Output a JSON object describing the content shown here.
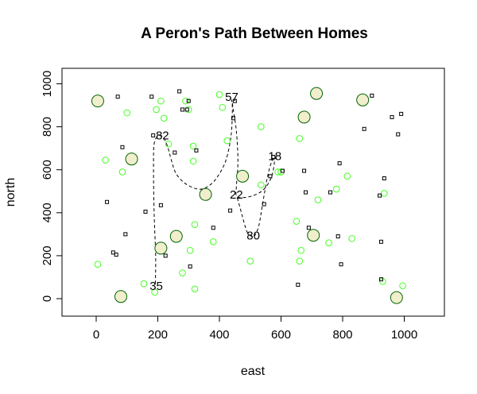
{
  "chart_data": {
    "type": "scatter",
    "title": "A Peron's Path Between Homes",
    "xlabel": "east",
    "ylabel": "north",
    "xlim": [
      -100,
      1100
    ],
    "ylim": [
      -80,
      1080
    ],
    "xticks": [
      "0",
      "200",
      "400",
      "600",
      "800",
      "1000"
    ],
    "yticks": [
      "0",
      "200",
      "400",
      "600",
      "800",
      "1000"
    ],
    "grid": false,
    "legend": "none",
    "colors": {
      "large_fill": "#f1eecd",
      "large_stroke": "#006400",
      "small_stroke": "#44ff22",
      "square_stroke": "#000000",
      "path": "#000000"
    },
    "homes": [
      {
        "x": 5,
        "y": 920
      },
      {
        "x": 115,
        "y": 650
      },
      {
        "x": 80,
        "y": 10
      },
      {
        "x": 210,
        "y": 235
      },
      {
        "x": 260,
        "y": 290
      },
      {
        "x": 355,
        "y": 485
      },
      {
        "x": 475,
        "y": 570
      },
      {
        "x": 675,
        "y": 845
      },
      {
        "x": 715,
        "y": 955
      },
      {
        "x": 705,
        "y": 295
      },
      {
        "x": 865,
        "y": 925
      },
      {
        "x": 975,
        "y": 5
      }
    ],
    "green_points": [
      {
        "x": 5,
        "y": 160
      },
      {
        "x": 30,
        "y": 645
      },
      {
        "x": 85,
        "y": 590
      },
      {
        "x": 100,
        "y": 865
      },
      {
        "x": 155,
        "y": 70
      },
      {
        "x": 190,
        "y": 30
      },
      {
        "x": 195,
        "y": 880
      },
      {
        "x": 210,
        "y": 920
      },
      {
        "x": 220,
        "y": 840
      },
      {
        "x": 235,
        "y": 720
      },
      {
        "x": 280,
        "y": 120
      },
      {
        "x": 290,
        "y": 920
      },
      {
        "x": 300,
        "y": 880
      },
      {
        "x": 305,
        "y": 225
      },
      {
        "x": 315,
        "y": 640
      },
      {
        "x": 315,
        "y": 710
      },
      {
        "x": 320,
        "y": 45
      },
      {
        "x": 320,
        "y": 345
      },
      {
        "x": 380,
        "y": 265
      },
      {
        "x": 400,
        "y": 950
      },
      {
        "x": 410,
        "y": 890
      },
      {
        "x": 425,
        "y": 735
      },
      {
        "x": 500,
        "y": 175
      },
      {
        "x": 535,
        "y": 530
      },
      {
        "x": 535,
        "y": 800
      },
      {
        "x": 590,
        "y": 590
      },
      {
        "x": 600,
        "y": 590
      },
      {
        "x": 650,
        "y": 360
      },
      {
        "x": 660,
        "y": 745
      },
      {
        "x": 660,
        "y": 175
      },
      {
        "x": 665,
        "y": 225
      },
      {
        "x": 720,
        "y": 460
      },
      {
        "x": 755,
        "y": 260
      },
      {
        "x": 780,
        "y": 510
      },
      {
        "x": 815,
        "y": 570
      },
      {
        "x": 830,
        "y": 280
      },
      {
        "x": 930,
        "y": 80
      },
      {
        "x": 935,
        "y": 490
      },
      {
        "x": 995,
        "y": 60
      }
    ],
    "squares": [
      {
        "x": 35,
        "y": 450
      },
      {
        "x": 55,
        "y": 215
      },
      {
        "x": 65,
        "y": 205
      },
      {
        "x": 70,
        "y": 940
      },
      {
        "x": 85,
        "y": 705
      },
      {
        "x": 95,
        "y": 300
      },
      {
        "x": 160,
        "y": 405
      },
      {
        "x": 180,
        "y": 940
      },
      {
        "x": 185,
        "y": 760
      },
      {
        "x": 210,
        "y": 435
      },
      {
        "x": 225,
        "y": 200
      },
      {
        "x": 255,
        "y": 680
      },
      {
        "x": 270,
        "y": 965
      },
      {
        "x": 280,
        "y": 880
      },
      {
        "x": 295,
        "y": 880
      },
      {
        "x": 300,
        "y": 920
      },
      {
        "x": 305,
        "y": 150
      },
      {
        "x": 325,
        "y": 690
      },
      {
        "x": 380,
        "y": 330
      },
      {
        "x": 435,
        "y": 410
      },
      {
        "x": 445,
        "y": 840
      },
      {
        "x": 450,
        "y": 920
      },
      {
        "x": 545,
        "y": 440
      },
      {
        "x": 565,
        "y": 570
      },
      {
        "x": 575,
        "y": 660
      },
      {
        "x": 605,
        "y": 595
      },
      {
        "x": 655,
        "y": 65
      },
      {
        "x": 675,
        "y": 595
      },
      {
        "x": 680,
        "y": 495
      },
      {
        "x": 690,
        "y": 330
      },
      {
        "x": 760,
        "y": 495
      },
      {
        "x": 785,
        "y": 290
      },
      {
        "x": 790,
        "y": 630
      },
      {
        "x": 795,
        "y": 160
      },
      {
        "x": 870,
        "y": 790
      },
      {
        "x": 895,
        "y": 945
      },
      {
        "x": 920,
        "y": 480
      },
      {
        "x": 925,
        "y": 90
      },
      {
        "x": 925,
        "y": 265
      },
      {
        "x": 935,
        "y": 560
      },
      {
        "x": 960,
        "y": 845
      },
      {
        "x": 980,
        "y": 765
      },
      {
        "x": 990,
        "y": 860
      }
    ],
    "path_labels": [
      {
        "label": "35",
        "x": 195,
        "y": 55
      },
      {
        "label": "82",
        "x": 215,
        "y": 755
      },
      {
        "label": "57",
        "x": 440,
        "y": 935
      },
      {
        "label": "22",
        "x": 455,
        "y": 480
      },
      {
        "label": "80",
        "x": 510,
        "y": 290
      },
      {
        "label": "18",
        "x": 580,
        "y": 660
      }
    ],
    "path": [
      [
        192,
        70
      ],
      [
        193,
        200
      ],
      [
        188,
        400
      ],
      [
        186,
        600
      ],
      [
        188,
        720
      ],
      [
        200,
        755
      ],
      [
        215,
        755
      ],
      [
        230,
        715
      ],
      [
        245,
        640
      ],
      [
        260,
        580
      ],
      [
        290,
        535
      ],
      [
        330,
        510
      ],
      [
        360,
        520
      ],
      [
        390,
        560
      ],
      [
        420,
        640
      ],
      [
        438,
        760
      ],
      [
        442,
        880
      ],
      [
        440,
        925
      ],
      [
        445,
        880
      ],
      [
        455,
        780
      ],
      [
        460,
        640
      ],
      [
        455,
        520
      ],
      [
        455,
        480
      ],
      [
        470,
        470
      ],
      [
        510,
        480
      ],
      [
        545,
        510
      ],
      [
        570,
        570
      ],
      [
        580,
        650
      ],
      [
        582,
        660
      ],
      [
        570,
        640
      ],
      [
        555,
        560
      ],
      [
        540,
        440
      ],
      [
        528,
        340
      ],
      [
        515,
        295
      ],
      [
        505,
        290
      ],
      [
        490,
        310
      ],
      [
        475,
        380
      ],
      [
        462,
        450
      ],
      [
        455,
        480
      ]
    ]
  }
}
